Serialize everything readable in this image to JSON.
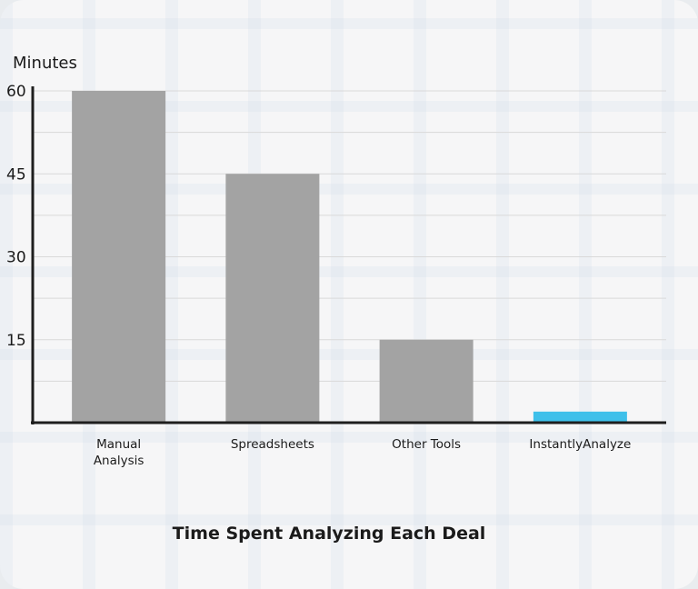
{
  "chart_data": {
    "type": "bar",
    "title": "Time Spent Analyzing Each Deal",
    "xlabel": "",
    "ylabel": "Minutes",
    "ylim": [
      0,
      60
    ],
    "yticks": [
      15,
      30,
      45,
      60
    ],
    "grid": true,
    "categories": [
      "Manual Analysis",
      "Spreadsheets",
      "Other Tools",
      "InstantlyAnalyze"
    ],
    "category_lines": [
      [
        "Manual",
        "Analysis"
      ],
      [
        "Spreadsheets"
      ],
      [
        "Other Tools"
      ],
      [
        "InstantlyAnalyze"
      ]
    ],
    "values": [
      60,
      45,
      15,
      2
    ],
    "colors": [
      "#a3a3a3",
      "#a3a3a3",
      "#a3a3a3",
      "#3ec0ea"
    ]
  }
}
